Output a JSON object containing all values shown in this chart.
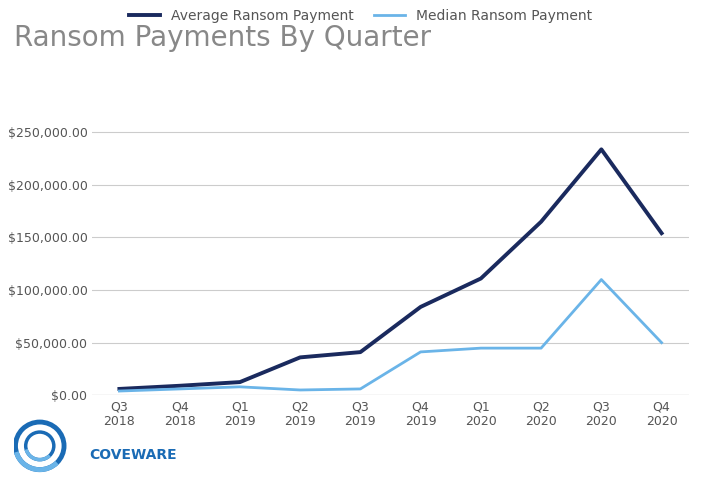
{
  "title": "Ransom Payments By Quarter",
  "categories": [
    "Q3\n2018",
    "Q4\n2018",
    "Q1\n2019",
    "Q2\n2019",
    "Q3\n2019",
    "Q4\n2019",
    "Q1\n2020",
    "Q2\n2020",
    "Q3\n2020",
    "Q4\n2020"
  ],
  "average": [
    6000,
    9000,
    12500,
    36000,
    41000,
    84000,
    111000,
    165000,
    233817,
    154108
  ],
  "median": [
    4000,
    6000,
    8000,
    5000,
    6000,
    41198,
    44800,
    44800,
    110000,
    50000
  ],
  "avg_color": "#1a2a5e",
  "med_color": "#6ab4e8",
  "avg_label": "Average Ransom Payment",
  "med_label": "Median Ransom Payment",
  "ylim": [
    0,
    275000
  ],
  "yticks": [
    0,
    50000,
    100000,
    150000,
    200000,
    250000
  ],
  "background_color": "#ffffff",
  "plot_bg_color": "#ffffff",
  "grid_color": "#cccccc",
  "title_color": "#888888",
  "tick_color": "#555555",
  "avg_linewidth": 2.8,
  "med_linewidth": 2.0,
  "legend_fontsize": 10,
  "title_fontsize": 20,
  "logo_outer_color": "#1a6bb5",
  "logo_inner_color": "#1a6bb5",
  "logo_arc_color": "#6ab4e8",
  "coveware_color": "#1a6bb5"
}
